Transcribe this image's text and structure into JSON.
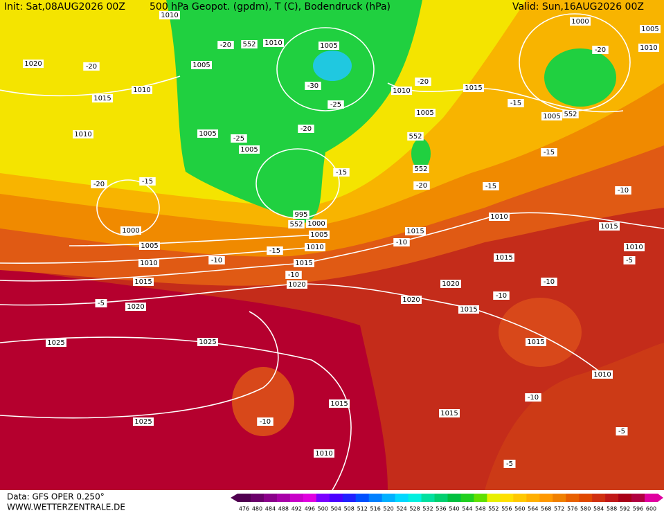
{
  "header": {
    "init": "Init: Sat,08AUG2026 00Z",
    "title": "500 hPa Geopot. (gpdm), T (C), Bodendruck (hPa)",
    "valid": "Valid: Sun,16AUG2026 00Z"
  },
  "footer": {
    "data": "Data: GFS OPER 0.250°",
    "site": "WWW.WETTERZENTRALE.DE"
  },
  "colorbar": {
    "levels": [
      476,
      480,
      484,
      488,
      492,
      496,
      500,
      504,
      508,
      512,
      516,
      520,
      524,
      528,
      532,
      536,
      540,
      544,
      548,
      552,
      556,
      560,
      564,
      568,
      572,
      576,
      580,
      584,
      588,
      592,
      596,
      600
    ],
    "colors": [
      "#500050",
      "#6a006a",
      "#8a008a",
      "#a800a8",
      "#c800c8",
      "#e000e0",
      "#7a00ff",
      "#4a00ff",
      "#2020ff",
      "#0050ff",
      "#0080ff",
      "#00b0ff",
      "#00d8ff",
      "#00f0e0",
      "#00e0a0",
      "#00d070",
      "#00c040",
      "#20d020",
      "#60e000",
      "#e8f000",
      "#ffe000",
      "#ffc800",
      "#ffb000",
      "#ff9800",
      "#f08000",
      "#e86000",
      "#e04800",
      "#d03010",
      "#c01818",
      "#a80018",
      "#b00040",
      "#e000a0"
    ]
  },
  "map_labels": [
    "1010",
    "552",
    "1010",
    "1005",
    "-20",
    "1005",
    "1020",
    "-20",
    "1015",
    "1010",
    "-30",
    "-25",
    "1010",
    "-20",
    "1015",
    "1000",
    "1005",
    "1010",
    "-20",
    "-15",
    "1005",
    "552",
    "1005",
    "552",
    "552",
    "-20",
    "1005",
    "-25",
    "1005",
    "1010",
    "-20",
    "-15",
    "-15",
    "-20",
    "-15",
    "-15",
    "-10",
    "1000",
    "995",
    "552",
    "1000",
    "1005",
    "1005",
    "1010",
    "-15",
    "1010",
    "-10",
    "1015",
    "-10",
    "1015",
    "-10",
    "1010",
    "1015",
    "1010",
    "-5",
    "1015",
    "1020",
    "1015",
    "1020",
    "-10",
    "-5",
    "1020",
    "1020",
    "1015",
    "-10",
    "1015",
    "1025",
    "1025",
    "1010",
    "1015",
    "-10",
    "1015",
    "-10",
    "1025",
    "-5",
    "1010",
    "-5"
  ]
}
